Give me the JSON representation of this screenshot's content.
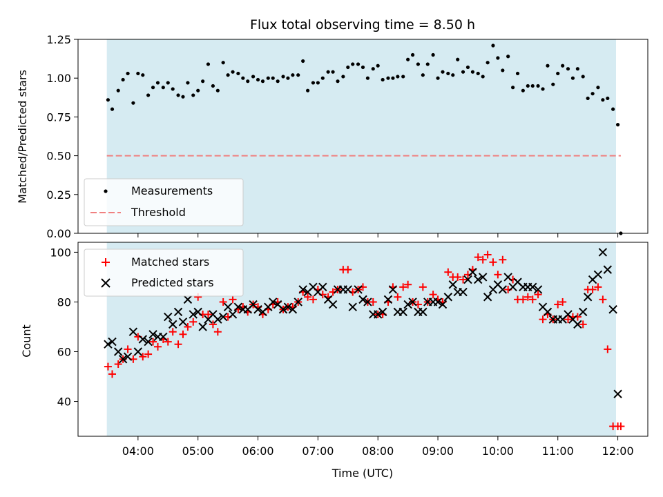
{
  "chart_data": [
    {
      "type": "scatter",
      "title": "Flux total observing time = 8.50 h",
      "xlabel": "",
      "ylabel": "Matched/Predicted stars",
      "x_unit": "hours (UTC)",
      "xlim": [
        3.0,
        12.5
      ],
      "ylim": [
        0.0,
        1.25
      ],
      "yticks": [
        "0.00",
        "0.25",
        "0.50",
        "0.75",
        "1.00",
        "1.25"
      ],
      "grid": false,
      "legend_position": "lower-left",
      "observing_window": [
        3.48,
        11.97
      ],
      "window_color": "#add8e6",
      "series": [
        {
          "name": "Measurements",
          "marker": "dot",
          "color": "#000000",
          "x": [
            3.5,
            3.57,
            3.67,
            3.75,
            3.83,
            3.92,
            4.0,
            4.08,
            4.17,
            4.25,
            4.33,
            4.42,
            4.5,
            4.58,
            4.67,
            4.75,
            4.83,
            4.92,
            5.0,
            5.08,
            5.17,
            5.25,
            5.33,
            5.42,
            5.5,
            5.58,
            5.67,
            5.75,
            5.83,
            5.92,
            6.0,
            6.08,
            6.17,
            6.25,
            6.33,
            6.42,
            6.5,
            6.58,
            6.67,
            6.75,
            6.83,
            6.92,
            7.0,
            7.08,
            7.17,
            7.25,
            7.33,
            7.42,
            7.5,
            7.58,
            7.67,
            7.75,
            7.83,
            7.92,
            8.0,
            8.08,
            8.17,
            8.25,
            8.33,
            8.42,
            8.5,
            8.58,
            8.67,
            8.75,
            8.83,
            8.92,
            9.0,
            9.08,
            9.17,
            9.25,
            9.33,
            9.42,
            9.5,
            9.58,
            9.67,
            9.75,
            9.83,
            9.92,
            10.0,
            10.08,
            10.17,
            10.25,
            10.33,
            10.42,
            10.5,
            10.58,
            10.67,
            10.75,
            10.83,
            10.92,
            11.0,
            11.08,
            11.17,
            11.25,
            11.33,
            11.42,
            11.5,
            11.58,
            11.67,
            11.75,
            11.83,
            11.92,
            12.0,
            12.05
          ],
          "y": [
            0.86,
            0.8,
            0.92,
            0.99,
            1.03,
            0.84,
            1.03,
            1.02,
            0.89,
            0.94,
            0.97,
            0.94,
            0.97,
            0.93,
            0.89,
            0.88,
            0.97,
            0.89,
            0.92,
            0.98,
            1.09,
            0.95,
            0.92,
            1.1,
            1.02,
            1.04,
            1.03,
            1.0,
            0.98,
            1.01,
            0.99,
            0.98,
            1.0,
            1.0,
            0.98,
            1.01,
            1.0,
            1.02,
            1.02,
            1.11,
            0.92,
            0.97,
            0.97,
            1.0,
            1.04,
            1.04,
            0.98,
            1.01,
            1.07,
            1.09,
            1.09,
            1.07,
            1.0,
            1.06,
            1.08,
            0.99,
            1.0,
            1.0,
            1.01,
            1.01,
            1.12,
            1.15,
            1.09,
            1.02,
            1.09,
            1.15,
            1.0,
            1.04,
            1.03,
            1.02,
            1.12,
            1.04,
            1.07,
            1.04,
            1.03,
            1.01,
            1.1,
            1.21,
            1.13,
            1.05,
            1.14,
            0.94,
            1.03,
            0.92,
            0.95,
            0.95,
            0.95,
            0.93,
            1.08,
            0.96,
            1.03,
            1.08,
            1.06,
            1.0,
            1.06,
            1.01,
            0.87,
            0.9,
            0.94,
            0.86,
            0.87,
            0.8,
            0.7,
            0.0
          ]
        },
        {
          "name": "Threshold",
          "marker": "dashed-line",
          "color": "#f08080",
          "x": [
            3.48,
            12.05
          ],
          "y": [
            0.5,
            0.5
          ]
        }
      ]
    },
    {
      "type": "scatter",
      "title": "",
      "xlabel": "Time (UTC)",
      "ylabel": "Count",
      "x_unit": "hours (UTC)",
      "xlim": [
        3.0,
        12.5
      ],
      "ylim": [
        26,
        104
      ],
      "yticks": [
        "40",
        "60",
        "80",
        "100"
      ],
      "xticks": [
        "04:00",
        "05:00",
        "06:00",
        "07:00",
        "08:00",
        "09:00",
        "10:00",
        "11:00",
        "12:00"
      ],
      "grid": false,
      "legend_position": "top-left",
      "observing_window": [
        3.48,
        11.97
      ],
      "window_color": "#add8e6",
      "series": [
        {
          "name": "Matched stars",
          "marker": "plus",
          "color": "#ff0000",
          "x": [
            3.5,
            3.57,
            3.67,
            3.75,
            3.83,
            3.92,
            4.0,
            4.08,
            4.17,
            4.25,
            4.33,
            4.42,
            4.5,
            4.58,
            4.67,
            4.75,
            4.83,
            4.92,
            5.0,
            5.08,
            5.17,
            5.25,
            5.33,
            5.42,
            5.5,
            5.58,
            5.67,
            5.75,
            5.83,
            5.92,
            6.0,
            6.08,
            6.17,
            6.25,
            6.33,
            6.42,
            6.5,
            6.58,
            6.67,
            6.75,
            6.83,
            6.92,
            7.0,
            7.08,
            7.17,
            7.25,
            7.33,
            7.42,
            7.5,
            7.58,
            7.67,
            7.75,
            7.83,
            7.92,
            8.0,
            8.08,
            8.17,
            8.25,
            8.33,
            8.42,
            8.5,
            8.58,
            8.67,
            8.75,
            8.83,
            8.92,
            9.0,
            9.08,
            9.17,
            9.25,
            9.33,
            9.42,
            9.5,
            9.58,
            9.67,
            9.75,
            9.83,
            9.92,
            10.0,
            10.08,
            10.17,
            10.25,
            10.33,
            10.42,
            10.5,
            10.58,
            10.67,
            10.75,
            10.83,
            10.92,
            11.0,
            11.08,
            11.17,
            11.25,
            11.33,
            11.42,
            11.5,
            11.58,
            11.67,
            11.75,
            11.83,
            11.92,
            12.0,
            12.05
          ],
          "y": [
            54,
            51,
            55,
            57,
            61,
            57,
            66,
            58,
            59,
            64,
            62,
            65,
            64,
            68,
            63,
            67,
            70,
            72,
            82,
            75,
            75,
            71,
            68,
            80,
            74,
            81,
            77,
            78,
            76,
            79,
            78,
            75,
            77,
            79,
            80,
            77,
            78,
            78,
            80,
            84,
            82,
            81,
            85,
            83,
            82,
            84,
            85,
            93,
            93,
            84,
            85,
            86,
            80,
            80,
            75,
            75,
            80,
            86,
            82,
            86,
            87,
            80,
            79,
            86,
            80,
            83,
            81,
            80,
            92,
            90,
            90,
            89,
            91,
            93,
            98,
            97,
            99,
            96,
            91,
            97,
            85,
            89,
            81,
            81,
            82,
            81,
            83,
            73,
            75,
            73,
            79,
            80,
            73,
            74,
            74,
            71,
            85,
            85,
            86,
            81,
            61,
            30,
            30,
            30
          ],
          "y_note": "last points near 30"
        },
        {
          "name": "Predicted stars",
          "marker": "x",
          "color": "#000000",
          "x": [
            3.5,
            3.57,
            3.67,
            3.75,
            3.83,
            3.92,
            4.0,
            4.08,
            4.17,
            4.25,
            4.33,
            4.42,
            4.5,
            4.58,
            4.67,
            4.75,
            4.83,
            4.92,
            5.0,
            5.08,
            5.17,
            5.25,
            5.33,
            5.42,
            5.5,
            5.58,
            5.67,
            5.75,
            5.83,
            5.92,
            6.0,
            6.08,
            6.17,
            6.25,
            6.33,
            6.42,
            6.5,
            6.58,
            6.67,
            6.75,
            6.83,
            6.92,
            7.0,
            7.08,
            7.17,
            7.25,
            7.33,
            7.42,
            7.5,
            7.58,
            7.67,
            7.75,
            7.83,
            7.92,
            8.0,
            8.08,
            8.17,
            8.25,
            8.33,
            8.42,
            8.5,
            8.58,
            8.67,
            8.75,
            8.83,
            8.92,
            9.0,
            9.08,
            9.17,
            9.25,
            9.33,
            9.42,
            9.5,
            9.58,
            9.67,
            9.75,
            9.83,
            9.92,
            10.0,
            10.08,
            10.17,
            10.25,
            10.33,
            10.42,
            10.5,
            10.58,
            10.67,
            10.75,
            10.83,
            10.92,
            11.0,
            11.08,
            11.17,
            11.25,
            11.33,
            11.42,
            11.5,
            11.58,
            11.67,
            11.75,
            11.83,
            11.92,
            12.0
          ],
          "y": [
            63,
            64,
            60,
            57,
            58,
            68,
            60,
            65,
            64,
            67,
            66,
            66,
            74,
            71,
            76,
            72,
            81,
            75,
            76,
            70,
            73,
            75,
            73,
            74,
            78,
            75,
            78,
            77,
            77,
            79,
            77,
            76,
            78,
            80,
            79,
            77,
            78,
            77,
            80,
            85,
            84,
            86,
            84,
            86,
            81,
            79,
            85,
            85,
            85,
            78,
            85,
            81,
            80,
            75,
            75,
            76,
            81,
            85,
            76,
            76,
            79,
            80,
            76,
            76,
            80,
            80,
            80,
            79,
            82,
            87,
            84,
            84,
            89,
            92,
            89,
            90,
            82,
            85,
            87,
            85,
            90,
            86,
            88,
            86,
            86,
            86,
            85,
            78,
            76,
            73,
            73,
            73,
            75,
            73,
            71,
            76,
            82,
            89,
            91,
            100,
            93,
            77,
            43
          ]
        }
      ]
    }
  ]
}
